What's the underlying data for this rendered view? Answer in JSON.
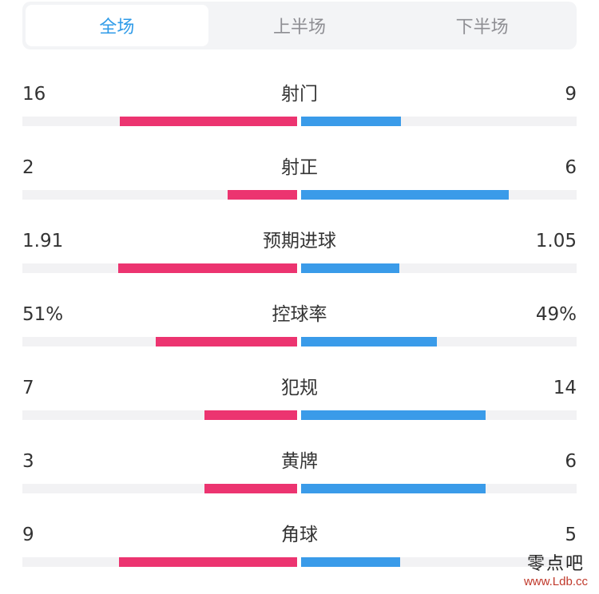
{
  "tabs": [
    {
      "label": "全场",
      "active": true
    },
    {
      "label": "上半场",
      "active": false
    },
    {
      "label": "下半场",
      "active": false
    }
  ],
  "colors": {
    "home": "#ec3470",
    "away": "#3a9be9",
    "active_tab": "#2f9be8",
    "track": "#f2f2f4"
  },
  "stats": [
    {
      "label": "射门",
      "home": "16",
      "away": "9",
      "home_share": 0.64,
      "away_share": 0.36
    },
    {
      "label": "射正",
      "home": "2",
      "away": "6",
      "home_share": 0.25,
      "away_share": 0.75
    },
    {
      "label": "预期进球",
      "home": "1.91",
      "away": "1.05",
      "home_share": 0.645,
      "away_share": 0.355
    },
    {
      "label": "控球率",
      "home": "51%",
      "away": "49%",
      "home_share": 0.51,
      "away_share": 0.49
    },
    {
      "label": "犯规",
      "home": "7",
      "away": "14",
      "home_share": 0.333,
      "away_share": 0.667
    },
    {
      "label": "黄牌",
      "home": "3",
      "away": "6",
      "home_share": 0.333,
      "away_share": 0.667
    },
    {
      "label": "角球",
      "home": "9",
      "away": "5",
      "home_share": 0.643,
      "away_share": 0.357
    }
  ],
  "watermark": {
    "name": "零点吧",
    "url": "www.Ldb.cc"
  }
}
